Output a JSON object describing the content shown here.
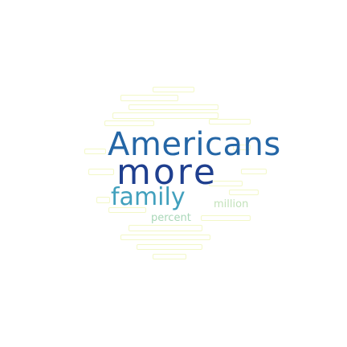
{
  "cloud": {
    "background": "#ffffff",
    "words": [
      {
        "text": "Americans",
        "color": "#2466a6"
      },
      {
        "text": "more",
        "color": "#1f3f8f"
      },
      {
        "text": "family",
        "color": "#41a0bd"
      },
      {
        "text": "million",
        "color": "#c2e2ba"
      },
      {
        "text": "percent",
        "color": "#a9d7b8"
      }
    ],
    "faint_color": "#f3f8c8"
  }
}
